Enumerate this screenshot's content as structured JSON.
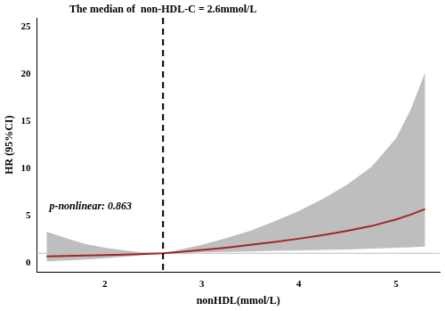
{
  "chart_data": {
    "type": "line",
    "x_label": "nonHDL(mmol/L)",
    "y_label": "HR (95%CI)",
    "x": [
      1.4,
      1.6,
      1.8,
      2.0,
      2.2,
      2.4,
      2.6,
      2.8,
      3.0,
      3.25,
      3.5,
      3.75,
      4.0,
      4.25,
      4.5,
      4.75,
      5.0,
      5.15,
      5.3
    ],
    "series": [
      {
        "name": "HR",
        "color": "#a3262a",
        "values": [
          0.68,
          0.72,
          0.77,
          0.82,
          0.87,
          0.93,
          1.0,
          1.17,
          1.35,
          1.6,
          1.9,
          2.2,
          2.55,
          2.95,
          3.4,
          3.9,
          4.6,
          5.1,
          5.7
        ]
      }
    ],
    "ci": {
      "color": "#bebebe",
      "lower": [
        0.15,
        0.25,
        0.35,
        0.48,
        0.62,
        0.8,
        1.0,
        1.05,
        1.1,
        1.15,
        1.2,
        1.25,
        1.3,
        1.35,
        1.4,
        1.5,
        1.6,
        1.65,
        1.7
      ],
      "upper": [
        3.3,
        2.6,
        2.0,
        1.6,
        1.3,
        1.1,
        1.0,
        1.45,
        1.9,
        2.6,
        3.4,
        4.4,
        5.5,
        6.8,
        8.3,
        10.2,
        13.2,
        16.2,
        20.2
      ]
    },
    "reference_line": {
      "y": 1,
      "color": "#bebebe"
    },
    "median_line": {
      "x": 2.6,
      "text": "The median of  non-HDL-C = 2.6mmol/L",
      "line_style": "dashed",
      "color": "#000000"
    },
    "annotation": "p-nonlinear: 0.863",
    "xlim": [
      1.3,
      5.45
    ],
    "xticks": [
      2,
      3,
      4,
      5
    ],
    "ylim": [
      -1,
      26
    ],
    "yticks": [
      0,
      5,
      10,
      15,
      20,
      25
    ],
    "grid": false
  }
}
